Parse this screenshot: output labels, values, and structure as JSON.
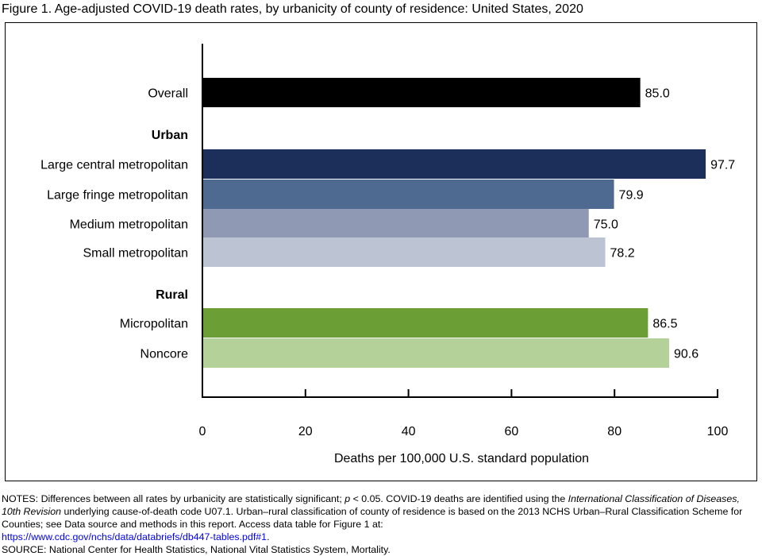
{
  "figure_title": "Figure 1. Age-adjusted COVID-19 death rates, by urbanicity of county of residence: United States, 2020",
  "chart_data": {
    "type": "bar",
    "orientation": "horizontal",
    "title": "Figure 1. Age-adjusted COVID-19 death rates, by urbanicity of county of residence: United States, 2020",
    "xlabel": "Deaths per 100,000 U.S. standard population",
    "ylabel": "",
    "xlim": [
      0,
      100
    ],
    "xticks": [
      "0",
      "20",
      "40",
      "60",
      "80",
      "100"
    ],
    "group_headers": [
      "Urban",
      "Rural"
    ],
    "categories": [
      "Overall",
      "Large central metropolitan",
      "Large fringe metropolitan",
      "Medium metropolitan",
      "Small metropolitan",
      "Micropolitan",
      "Noncore"
    ],
    "groups": [
      "",
      "Urban",
      "Urban",
      "Urban",
      "Urban",
      "Rural",
      "Rural"
    ],
    "values": [
      85.0,
      97.7,
      79.9,
      75.0,
      78.2,
      86.5,
      90.6
    ],
    "value_labels": [
      "85.0",
      "97.7",
      "79.9",
      "75.0",
      "78.2",
      "86.5",
      "90.6"
    ],
    "colors": [
      "#000000",
      "#1c2f5a",
      "#4f6a91",
      "#8f99b3",
      "#bcc4d3",
      "#6b9e35",
      "#b5d19a"
    ],
    "grid": false
  },
  "notes": {
    "line1_pre": "NOTES: Differences between all rates by urbanicity are statistically significant; ",
    "p": "p",
    "line1_mid": " < 0.05. COVID-19 deaths are identified using the ",
    "icd": "International Classification of Diseases, 10th Revision",
    "line1_post": " underlying cause-of-death code U07.1. Urban–rural classification of county of residence is based on the 2013 NCHS Urban–Rural Classification Scheme for Counties; see Data source and methods in this report. Access data table for Figure 1 at: ",
    "link": "https://www.cdc.gov/nchs/data/databriefs/db447-tables.pdf#1",
    "link_suffix": ".",
    "source": "SOURCE: National Center for Health Statistics, National Vital Statistics System, Mortality."
  }
}
